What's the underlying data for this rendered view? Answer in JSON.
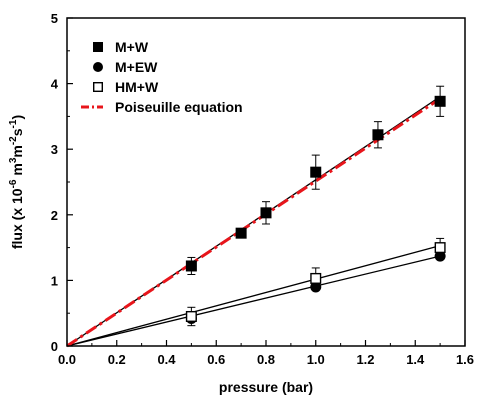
{
  "chart_data": {
    "type": "scatter",
    "xlabel": "pressure (bar)",
    "ylabel": {
      "prefix": "flux (x 10",
      "exp1": "-6",
      "mid1": " m",
      "exp2": "3",
      "mid2": "m",
      "exp3": "-2",
      "mid3": "s",
      "exp4": "-1",
      "suffix": ")"
    },
    "xlim": [
      0,
      1.6
    ],
    "ylim": [
      0,
      5
    ],
    "xticks": [
      "0.0",
      "0.2",
      "0.4",
      "0.6",
      "0.8",
      "1.0",
      "1.2",
      "1.4",
      "1.6"
    ],
    "xtick_values": [
      0,
      0.2,
      0.4,
      0.6,
      0.8,
      1.0,
      1.2,
      1.4,
      1.6
    ],
    "yticks": [
      "0",
      "1",
      "2",
      "3",
      "4",
      "5"
    ],
    "ytick_values": [
      0,
      1,
      2,
      3,
      4,
      5
    ],
    "legend_placement": "top-left",
    "series": [
      {
        "name": "M+W",
        "marker": "filled-square",
        "color": "#000000",
        "x": [
          0.5,
          0.7,
          0.8,
          1.0,
          1.25,
          1.5
        ],
        "y": [
          1.22,
          1.72,
          2.03,
          2.65,
          3.22,
          3.73
        ],
        "yerr": [
          0.13,
          0.06,
          0.17,
          0.26,
          0.2,
          0.23
        ],
        "fit": [
          [
            0,
            0
          ],
          [
            1.5,
            3.8
          ]
        ]
      },
      {
        "name": "M+EW",
        "marker": "filled-circle",
        "color": "#000000",
        "x": [
          0.5,
          1.0,
          1.5
        ],
        "y": [
          0.42,
          0.9,
          1.37
        ],
        "yerr": [
          0,
          0,
          0
        ],
        "fit": [
          [
            0,
            0
          ],
          [
            1.5,
            1.37
          ]
        ]
      },
      {
        "name": "HM+W",
        "marker": "open-square",
        "color": "#000000",
        "x": [
          0.5,
          1.0,
          1.5
        ],
        "y": [
          0.45,
          1.03,
          1.5
        ],
        "yerr": [
          0.14,
          0.16,
          0.14
        ],
        "fit": [
          [
            0,
            0
          ],
          [
            1.5,
            1.53
          ]
        ]
      },
      {
        "name": "Poiseuille equation",
        "marker": "dash-dot-line",
        "color": "#e8151b",
        "x": [
          0,
          1.5
        ],
        "y": [
          0,
          3.77
        ]
      }
    ]
  }
}
